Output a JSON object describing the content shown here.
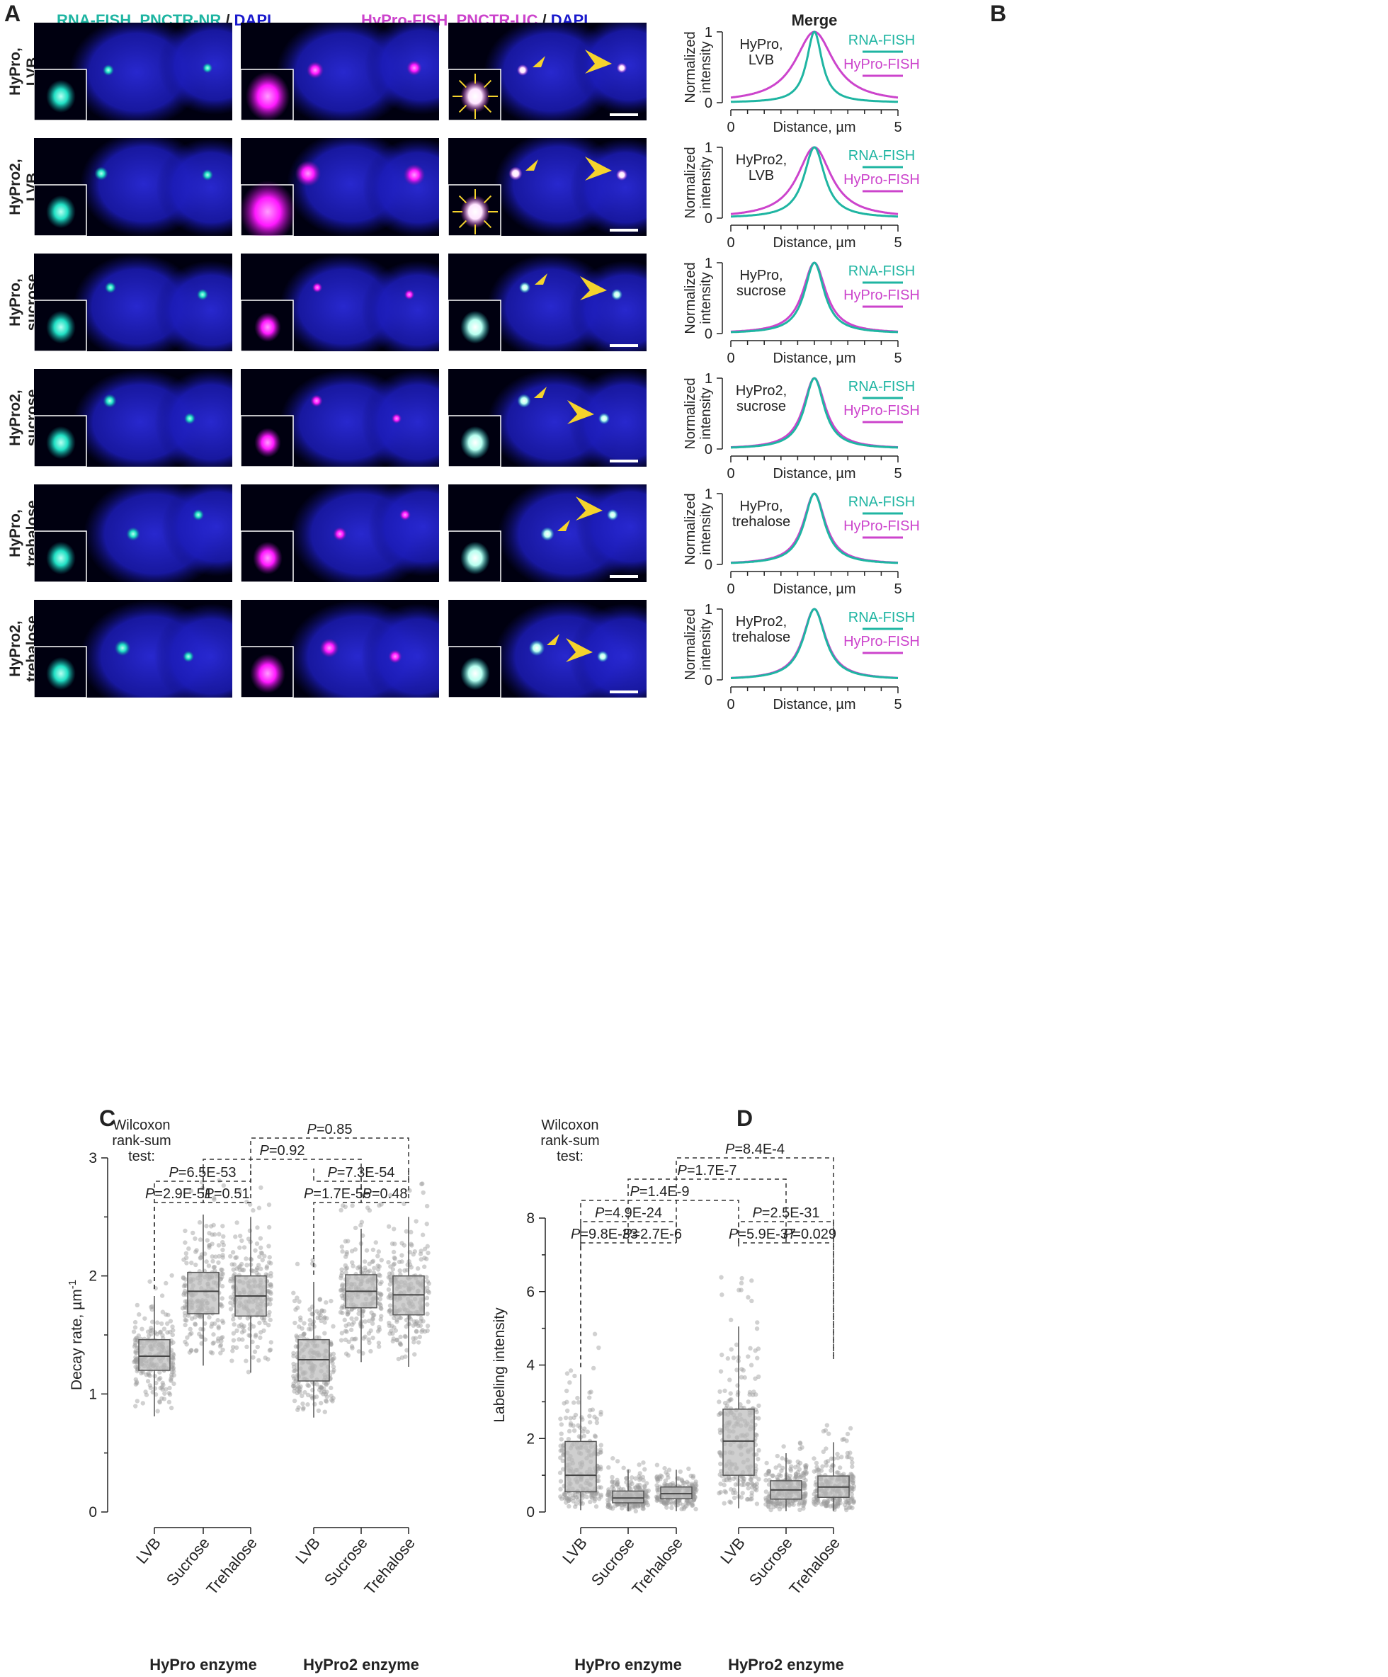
{
  "panel_labels": {
    "a": "A",
    "b": "B",
    "c": "C",
    "d": "D"
  },
  "headers": {
    "col1_a": "RNA-FISH, PNCTR-NR",
    "col1_sep": " / ",
    "col1_b": "DAPI",
    "col2_a": "HyPro-FISH, PNCTR-UC",
    "col2_sep": " / ",
    "col2_b": "DAPI",
    "col3": "Merge"
  },
  "rows": [
    {
      "line1": "HyPro,",
      "line2": "LVB"
    },
    {
      "line1": "HyPro2,",
      "line2": "LVB"
    },
    {
      "line1": "HyPro,",
      "line2": "sucrose"
    },
    {
      "line1": "HyPro2,",
      "line2": "sucrose"
    },
    {
      "line1": "HyPro,",
      "line2": "trehalose"
    },
    {
      "line1": "HyPro2,",
      "line2": "trehalose"
    }
  ],
  "colors": {
    "teal": "#1fb5a2",
    "magenta": "#cc44cc",
    "blue": "#1a1acc",
    "arrow": "#f5d32c",
    "box": "#bbbbbb",
    "point": "#9a9a9a"
  },
  "profile_common": {
    "ylabel1": "Normalized",
    "ylabel2": "intensity",
    "xlabel": "Distance, µm",
    "legend_rna": "RNA-FISH",
    "legend_hypro": "HyPro-FISH",
    "yticks": [
      "0",
      "1"
    ],
    "xticks": [
      "0",
      "5"
    ]
  },
  "chart_data": [
    {
      "type": "line",
      "title": "HyPro, LVB",
      "x_range": [
        0,
        5
      ],
      "ylim": [
        0,
        1
      ],
      "series": [
        {
          "name": "RNA-FISH",
          "center": 2.5,
          "width": 0.28
        },
        {
          "name": "HyPro-FISH",
          "center": 2.5,
          "width": 0.7
        }
      ]
    },
    {
      "type": "line",
      "title": "HyPro2, LVB",
      "x_range": [
        0,
        5
      ],
      "ylim": [
        0,
        1
      ],
      "series": [
        {
          "name": "RNA-FISH",
          "center": 2.5,
          "width": 0.38
        },
        {
          "name": "HyPro-FISH",
          "center": 2.5,
          "width": 0.62
        }
      ]
    },
    {
      "type": "line",
      "title": "HyPro, sucrose",
      "x_range": [
        0,
        5
      ],
      "ylim": [
        0,
        1
      ],
      "series": [
        {
          "name": "RNA-FISH",
          "center": 2.5,
          "width": 0.36
        },
        {
          "name": "HyPro-FISH",
          "center": 2.5,
          "width": 0.42
        }
      ]
    },
    {
      "type": "line",
      "title": "HyPro2, sucrose",
      "x_range": [
        0,
        5
      ],
      "ylim": [
        0,
        1
      ],
      "series": [
        {
          "name": "RNA-FISH",
          "center": 2.5,
          "width": 0.36
        },
        {
          "name": "HyPro-FISH",
          "center": 2.5,
          "width": 0.4
        }
      ]
    },
    {
      "type": "line",
      "title": "HyPro, trehalose",
      "x_range": [
        0,
        5
      ],
      "ylim": [
        0,
        1
      ],
      "series": [
        {
          "name": "RNA-FISH",
          "center": 2.5,
          "width": 0.37
        },
        {
          "name": "HyPro-FISH",
          "center": 2.5,
          "width": 0.4
        }
      ]
    },
    {
      "type": "line",
      "title": "HyPro2, trehalose",
      "x_range": [
        0,
        5
      ],
      "ylim": [
        0,
        1
      ],
      "series": [
        {
          "name": "RNA-FISH",
          "center": 2.5,
          "width": 0.4
        },
        {
          "name": "HyPro-FISH",
          "center": 2.5,
          "width": 0.42
        }
      ]
    },
    {
      "type": "box",
      "ylabel": "Decay rate, µm",
      "ylabel_sup": "-1",
      "ylim": [
        0,
        3
      ],
      "yticks": [
        0,
        1,
        2,
        3
      ],
      "categories": [
        "LVB",
        "Sucrose",
        "Trehalose",
        "LVB",
        "Sucrose",
        "Trehalose"
      ],
      "groups": [
        "HyPro enzyme",
        "HyPro2 enzyme"
      ],
      "boxes": [
        {
          "category": "LVB",
          "group": "HyPro enzyme",
          "q1": 1.2,
          "median": 1.32,
          "q3": 1.46,
          "whisker_low": 0.81,
          "whisker_high": 1.83
        },
        {
          "category": "Sucrose",
          "group": "HyPro enzyme",
          "q1": 1.68,
          "median": 1.87,
          "q3": 2.03,
          "whisker_low": 1.24,
          "whisker_high": 2.52
        },
        {
          "category": "Trehalose",
          "group": "HyPro enzyme",
          "q1": 1.66,
          "median": 1.83,
          "q3": 2.0,
          "whisker_low": 1.18,
          "whisker_high": 2.5
        },
        {
          "category": "LVB",
          "group": "HyPro2 enzyme",
          "q1": 1.11,
          "median": 1.29,
          "q3": 1.46,
          "whisker_low": 0.8,
          "whisker_high": 1.95
        },
        {
          "category": "Sucrose",
          "group": "HyPro2 enzyme",
          "q1": 1.73,
          "median": 1.87,
          "q3": 2.01,
          "whisker_low": 1.27,
          "whisker_high": 2.4
        },
        {
          "category": "Trehalose",
          "group": "HyPro2 enzyme",
          "q1": 1.67,
          "median": 1.84,
          "q3": 2.0,
          "whisker_low": 1.23,
          "whisker_high": 2.5
        }
      ],
      "test_label": [
        "Wilcoxon",
        "rank-sum",
        "test:"
      ],
      "comparisons": [
        {
          "pair": [
            0,
            1
          ],
          "p": "P",
          "value": "=2.9E-51"
        },
        {
          "pair": [
            1,
            2
          ],
          "p": "P",
          "value": "=0.51"
        },
        {
          "pair": [
            0,
            2
          ],
          "p": "P",
          "value": "=6.5E-53"
        },
        {
          "pair": [
            3,
            4
          ],
          "p": "P",
          "value": "=1.7E-55"
        },
        {
          "pair": [
            4,
            5
          ],
          "p": "P",
          "value": "=0.48"
        },
        {
          "pair": [
            3,
            5
          ],
          "p": "P",
          "value": "=7.3E-54"
        },
        {
          "pair": [
            1,
            4
          ],
          "p": "P",
          "value": "=0.92"
        },
        {
          "pair": [
            2,
            5
          ],
          "p": "P",
          "value": "=0.85"
        }
      ]
    },
    {
      "type": "box",
      "ylabel": "Labeling intensity",
      "ylim": [
        0,
        8
      ],
      "yticks": [
        0,
        2,
        4,
        6,
        8
      ],
      "categories": [
        "LVB",
        "Sucrose",
        "Trehalose",
        "LVB",
        "Sucrose",
        "Trehalose"
      ],
      "groups": [
        "HyPro enzyme",
        "HyPro2 enzyme"
      ],
      "boxes": [
        {
          "category": "LVB",
          "group": "HyPro enzyme",
          "q1": 0.55,
          "median": 1.0,
          "q3": 1.92,
          "whisker_low": 0.05,
          "whisker_high": 3.75
        },
        {
          "category": "Sucrose",
          "group": "HyPro enzyme",
          "q1": 0.25,
          "median": 0.38,
          "q3": 0.57,
          "whisker_low": 0.02,
          "whisker_high": 1.15
        },
        {
          "category": "Trehalose",
          "group": "HyPro enzyme",
          "q1": 0.36,
          "median": 0.5,
          "q3": 0.68,
          "whisker_low": 0.02,
          "whisker_high": 1.15
        },
        {
          "category": "LVB",
          "group": "HyPro2 enzyme",
          "q1": 1.0,
          "median": 1.93,
          "q3": 2.8,
          "whisker_low": 0.1,
          "whisker_high": 5.05
        },
        {
          "category": "Sucrose",
          "group": "HyPro2 enzyme",
          "q1": 0.35,
          "median": 0.6,
          "q3": 0.85,
          "whisker_low": 0.02,
          "whisker_high": 1.6
        },
        {
          "category": "Trehalose",
          "group": "HyPro2 enzyme",
          "q1": 0.4,
          "median": 0.68,
          "q3": 0.98,
          "whisker_low": 0.03,
          "whisker_high": 1.9
        }
      ],
      "test_label": [
        "Wilcoxon",
        "rank-sum",
        "test:"
      ],
      "comparisons": [
        {
          "pair": [
            0,
            1
          ],
          "p": "P",
          "value": "=9.8E-33"
        },
        {
          "pair": [
            1,
            2
          ],
          "p": "P",
          "value": "=2.7E-6"
        },
        {
          "pair": [
            0,
            2
          ],
          "p": "P",
          "value": "=4.9E-24"
        },
        {
          "pair": [
            3,
            4
          ],
          "p": "P",
          "value": "=5.9E-37"
        },
        {
          "pair": [
            4,
            5
          ],
          "p": "P",
          "value": "=0.029"
        },
        {
          "pair": [
            3,
            5
          ],
          "p": "P",
          "value": "=2.5E-31"
        },
        {
          "pair": [
            0,
            3
          ],
          "p": "P",
          "value": "=1.4E-9"
        },
        {
          "pair": [
            1,
            4
          ],
          "p": "P",
          "value": "=1.7E-7"
        },
        {
          "pair": [
            2,
            5
          ],
          "p": "P",
          "value": "=8.4E-4"
        }
      ]
    }
  ]
}
